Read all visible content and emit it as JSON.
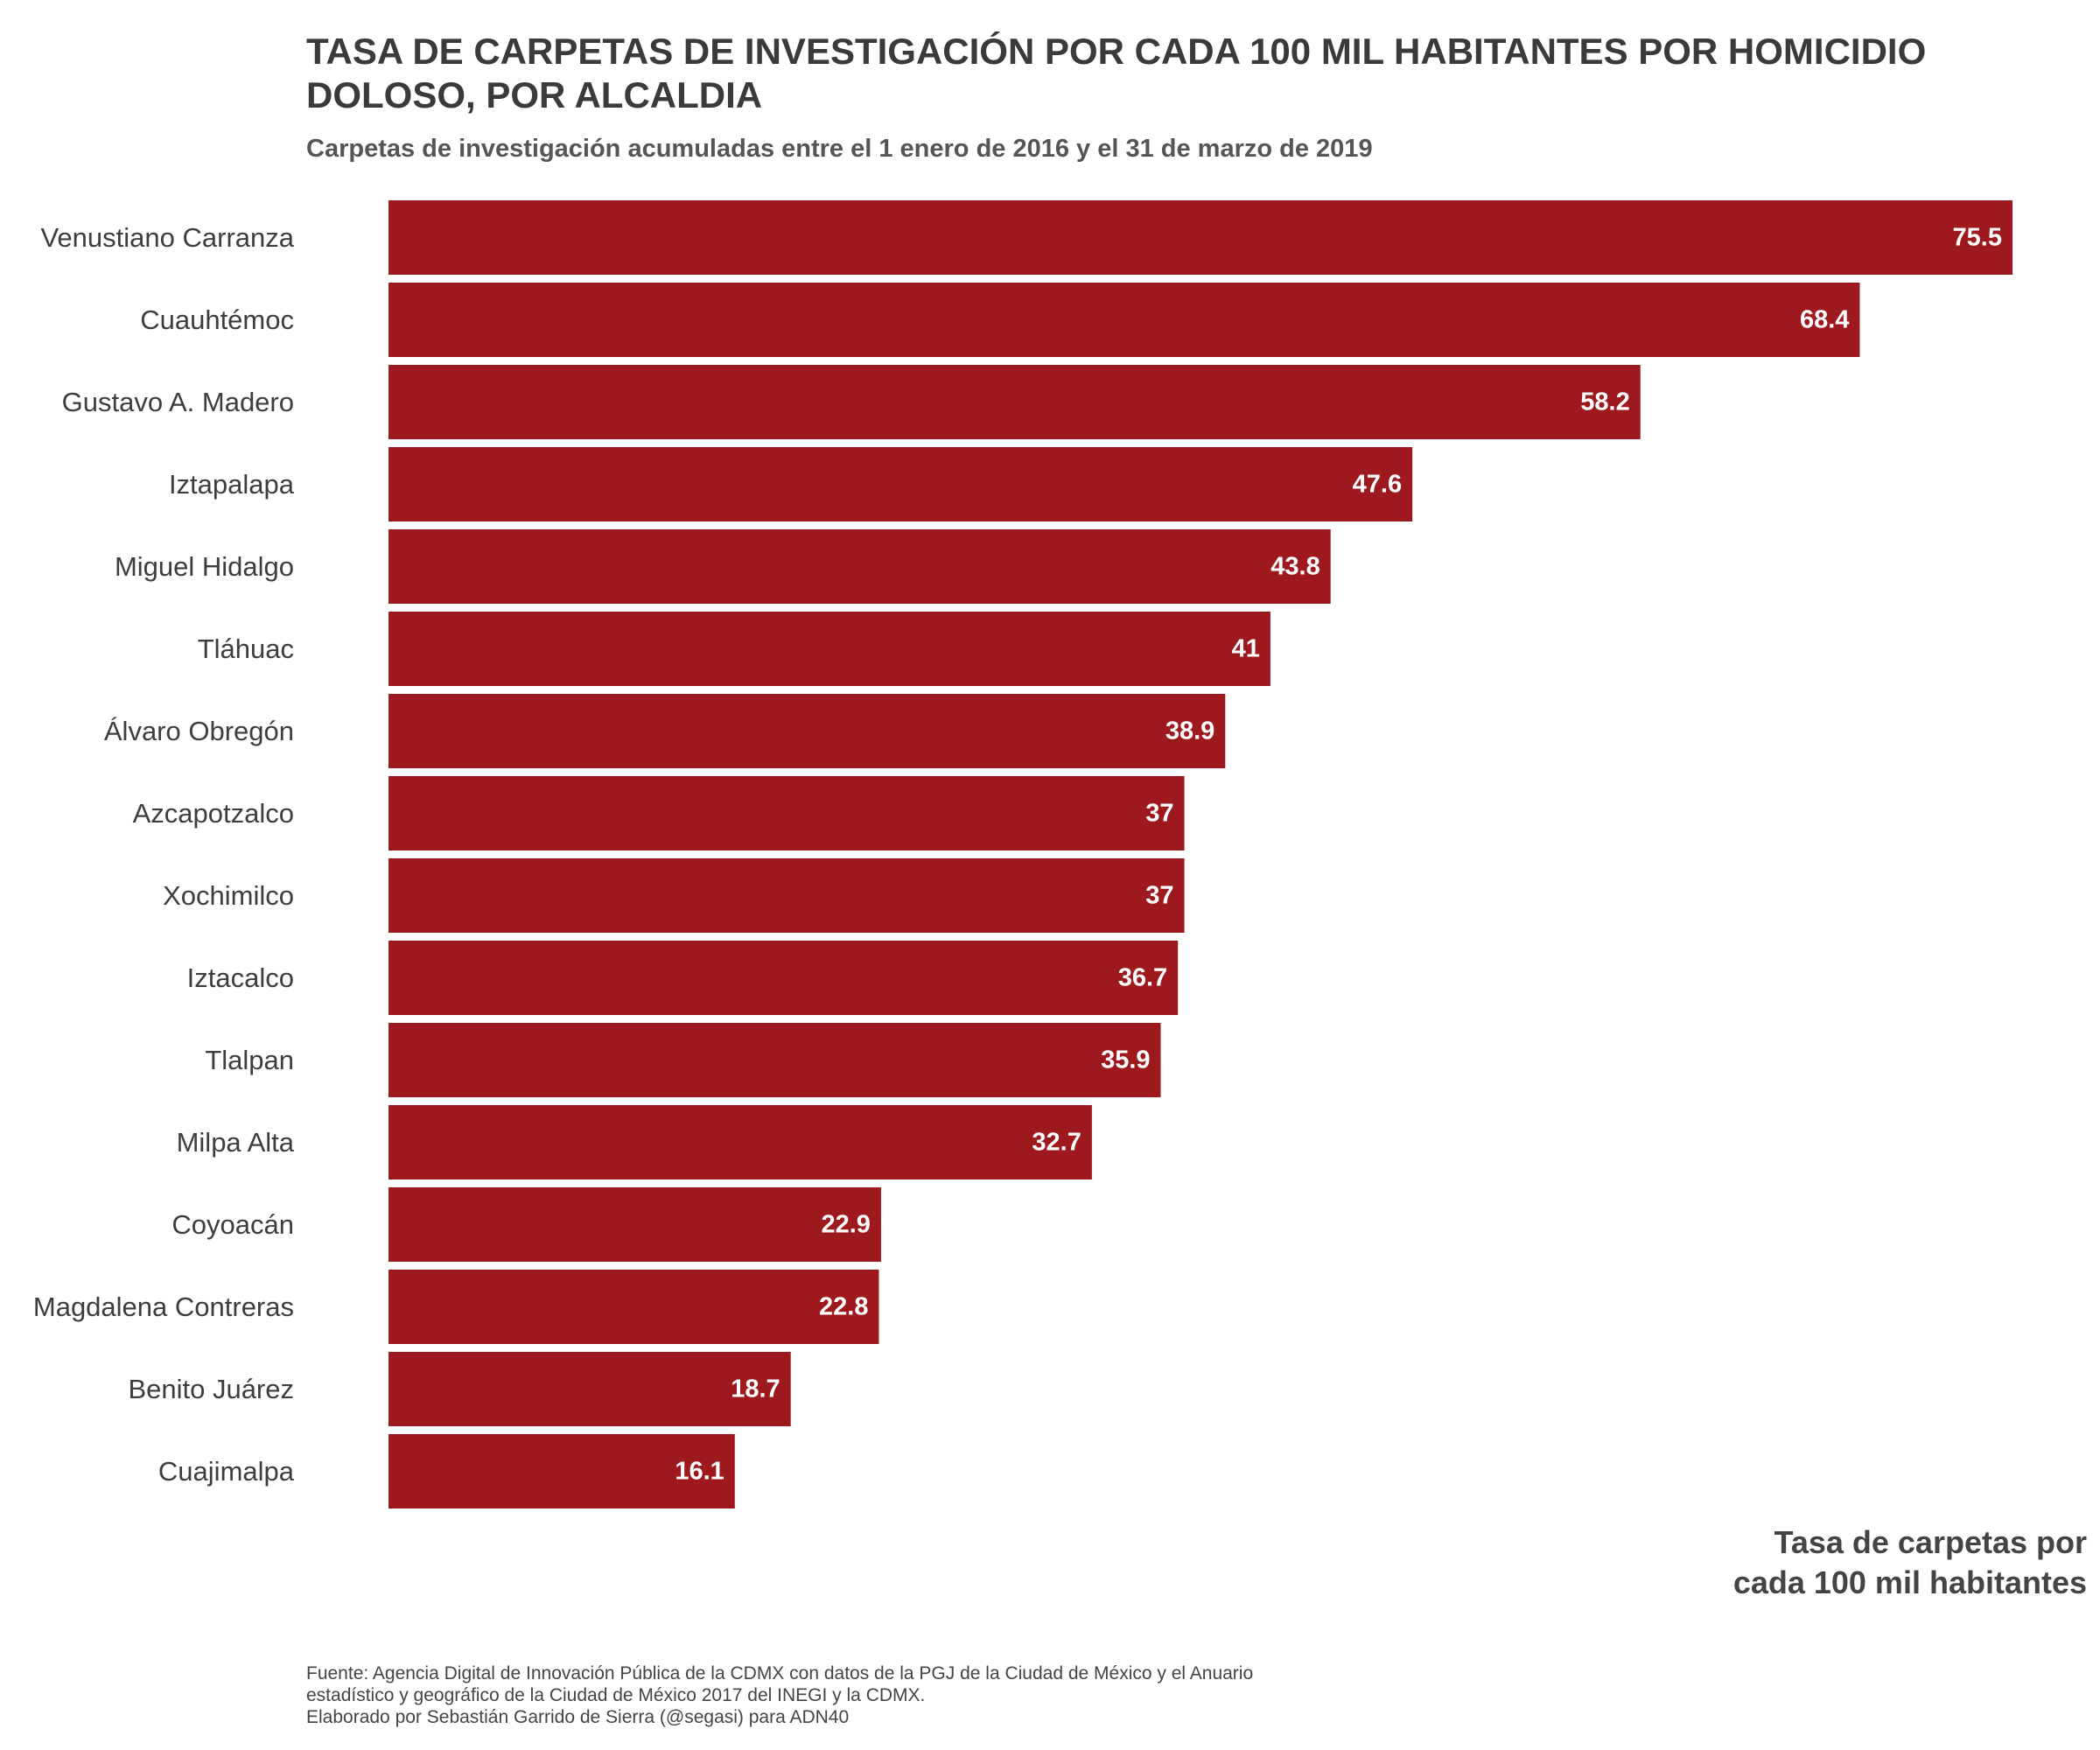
{
  "chart_data": {
    "type": "bar",
    "orientation": "horizontal",
    "title": "TASA DE CARPETAS DE INVESTIGACIÓN POR CADA 100 MIL HABITANTES POR HOMICIDIO DOLOSO, POR ALCALDIA",
    "subtitle": "Carpetas de investigación acumuladas entre el 1 enero de 2016 y el 31 de marzo de 2019",
    "xlabel": "Tasa de carpetas por cada 100 mil habitantes",
    "ylabel": "",
    "categories": [
      "Venustiano Carranza",
      "Cuauhtémoc",
      "Gustavo A. Madero",
      "Iztapalapa",
      "Miguel Hidalgo",
      "Tláhuac",
      "Álvaro Obregón",
      "Azcapotzalco",
      "Xochimilco",
      "Iztacalco",
      "Tlalpan",
      "Milpa Alta",
      "Coyoacán",
      "Magdalena Contreras",
      "Benito Juárez",
      "Cuajimalpa"
    ],
    "values": [
      75.5,
      68.4,
      58.2,
      47.6,
      43.8,
      41,
      38.9,
      37,
      37,
      36.7,
      35.9,
      32.7,
      22.9,
      22.8,
      18.7,
      16.1
    ],
    "xlim": [
      0,
      75.5
    ],
    "grid": false,
    "bar_color": "#9d191e",
    "label_color": "#ffffff",
    "caption": [
      "Fuente: Agencia Digital de Innovación Pública de la CDMX con datos de la PGJ de la Ciudad de México y el Anuario",
      "estadístico y geográfico de la Ciudad de México 2017 del INEGI y la CDMX.",
      "Elaborado por Sebastián Garrido de Sierra (@segasi) para ADN40"
    ]
  }
}
